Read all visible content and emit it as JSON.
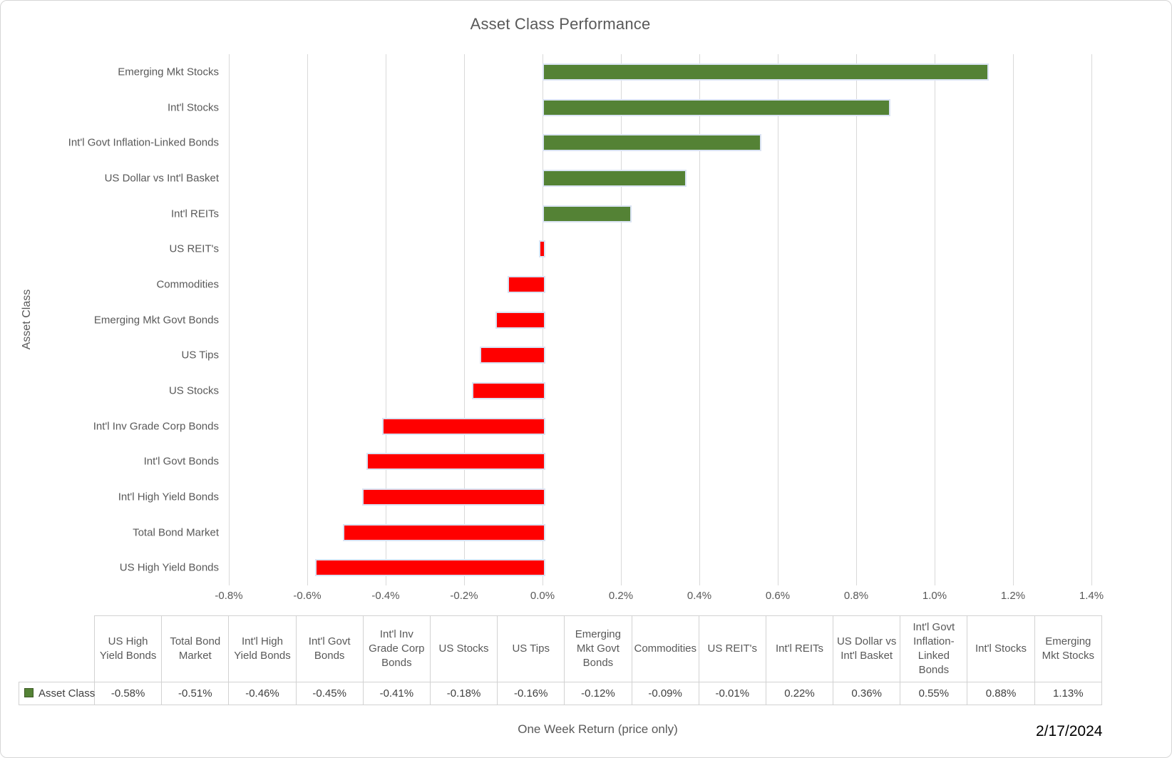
{
  "title": "Asset Class Performance",
  "xlabel": "One Week Return (price only)",
  "ylabel": "Asset Class",
  "date": "2/17/2024",
  "colors": {
    "positive": "#548235",
    "negative": "#ff0000",
    "bar_border": "#dae3f3",
    "text_gray": "#595959",
    "gridline": "#d9d9d9"
  },
  "chart_data": {
    "type": "bar",
    "orientation": "horizontal",
    "title": "Asset Class Performance",
    "xlabel": "One Week Return (price only)",
    "ylabel": "Asset Class",
    "legend": [
      "Asset Class"
    ],
    "legend_position": "bottom-left-of-data-table",
    "grid": true,
    "xlim": [
      -0.8,
      1.4
    ],
    "tick_step": 0.2,
    "xticks": [
      "-0.8%",
      "-0.6%",
      "-0.4%",
      "-0.2%",
      "0.0%",
      "0.2%",
      "0.4%",
      "0.6%",
      "0.8%",
      "1.0%",
      "1.2%",
      "1.4%"
    ],
    "categories": [
      "Emerging Mkt Stocks",
      "Int'l Stocks",
      "Int'l Govt Inflation-Linked Bonds",
      "US Dollar vs Int'l Basket",
      "Int'l REITs",
      "US REIT's",
      "Commodities",
      "Emerging Mkt Govt Bonds",
      "US Tips",
      "US Stocks",
      "Int'l Inv Grade Corp Bonds",
      "Int'l Govt Bonds",
      "Int'l High Yield Bonds",
      "Total Bond Market",
      "US High Yield Bonds"
    ],
    "values_pct": [
      1.13,
      0.88,
      0.55,
      0.36,
      0.22,
      -0.01,
      -0.09,
      -0.12,
      -0.16,
      -0.18,
      -0.41,
      -0.45,
      -0.46,
      -0.51,
      -0.58
    ]
  },
  "table": {
    "series_label": "Asset Class",
    "headers": [
      "US High Yield Bonds",
      "Total Bond Market",
      "Int'l High Yield Bonds",
      "Int'l Govt Bonds",
      "Int'l Inv Grade Corp Bonds",
      "US Stocks",
      "US Tips",
      "Emerging Mkt Govt Bonds",
      "Commodities",
      "US REIT's",
      "Int'l REITs",
      "US Dollar vs Int'l Basket",
      "Int'l Govt Inflation-Linked Bonds",
      "Int'l Stocks",
      "Emerging Mkt Stocks"
    ],
    "values": [
      "-0.58%",
      "-0.51%",
      "-0.46%",
      "-0.45%",
      "-0.41%",
      "-0.18%",
      "-0.16%",
      "-0.12%",
      "-0.09%",
      "-0.01%",
      "0.22%",
      "0.36%",
      "0.55%",
      "0.88%",
      "1.13%"
    ]
  }
}
